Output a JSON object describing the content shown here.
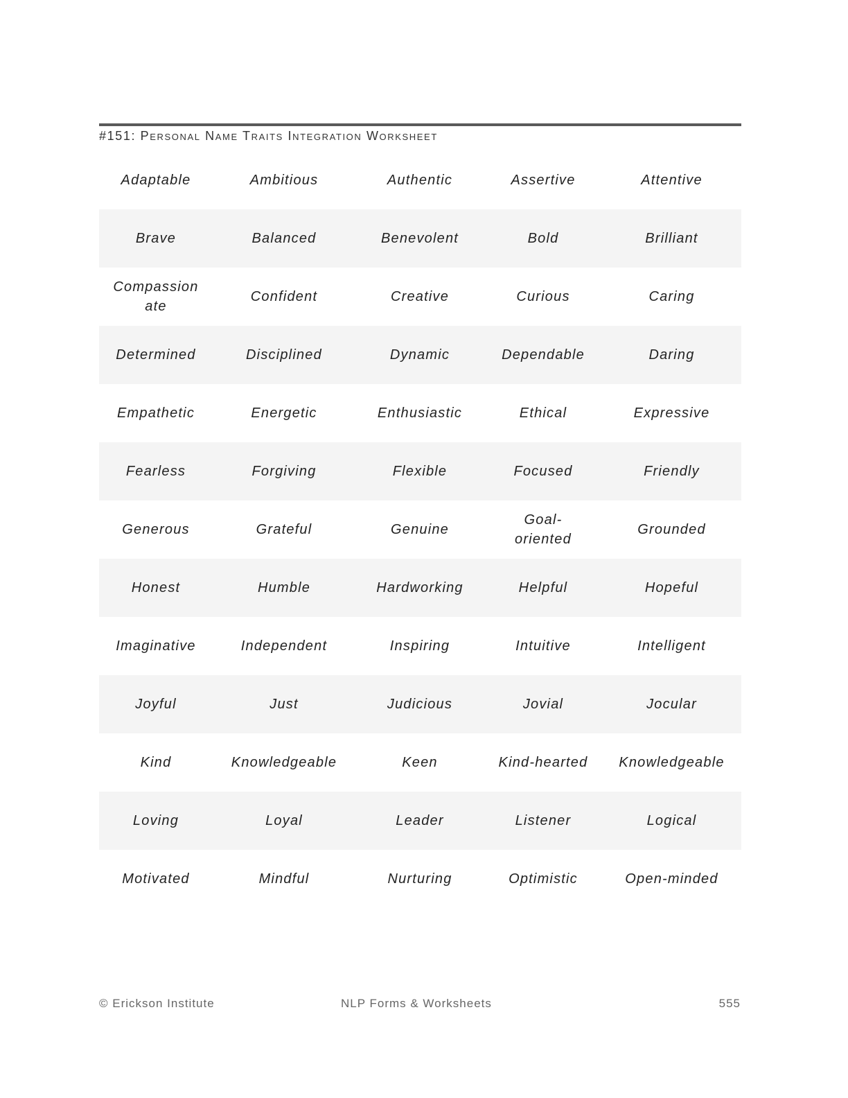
{
  "header": {
    "title": "#151: Personal Name Traits Integration Worksheet"
  },
  "traits": [
    [
      "Adaptable",
      "Ambitious",
      "Authentic",
      "Assertive",
      "Attentive"
    ],
    [
      "Brave",
      "Balanced",
      "Benevolent",
      "Bold",
      "Brilliant"
    ],
    [
      "Compassionate",
      "Confident",
      "Creative",
      "Curious",
      "Caring"
    ],
    [
      "Determined",
      "Disciplined",
      "Dynamic",
      "Dependable",
      "Daring"
    ],
    [
      "Empathetic",
      "Energetic",
      "Enthusiastic",
      "Ethical",
      "Expressive"
    ],
    [
      "Fearless",
      "Forgiving",
      "Flexible",
      "Focused",
      "Friendly"
    ],
    [
      "Generous",
      "Grateful",
      "Genuine",
      "Goal-oriented",
      "Grounded"
    ],
    [
      "Honest",
      "Humble",
      "Hardworking",
      "Helpful",
      "Hopeful"
    ],
    [
      "Imaginative",
      "Independent",
      "Inspiring",
      "Intuitive",
      "Intelligent"
    ],
    [
      "Joyful",
      "Just",
      "Judicious",
      "Jovial",
      "Jocular"
    ],
    [
      "Kind",
      "Knowledgeable",
      "Keen",
      "Kind-hearted",
      "Knowledgeable"
    ],
    [
      "Loving",
      "Loyal",
      "Leader",
      "Listener",
      "Logical"
    ],
    [
      "Motivated",
      "Mindful",
      "Nurturing",
      "Optimistic",
      "Open-minded"
    ]
  ],
  "footer": {
    "copyright": "© Erickson Institute",
    "book": "NLP Forms & Worksheets",
    "page": "555"
  }
}
